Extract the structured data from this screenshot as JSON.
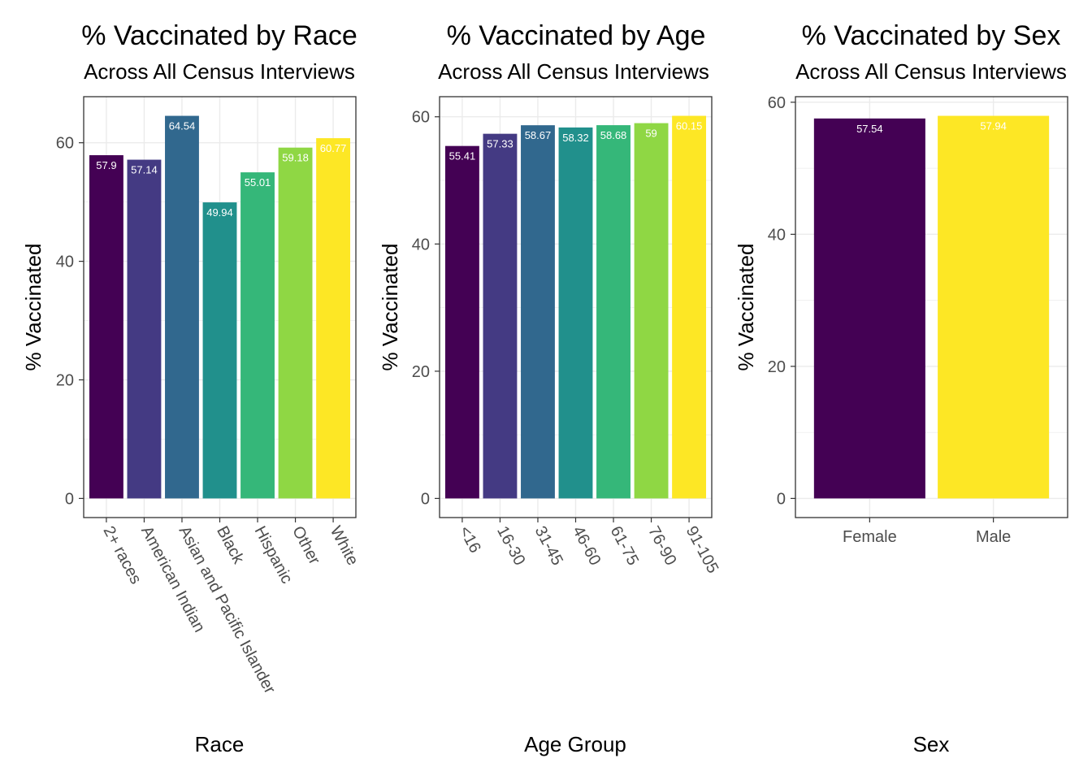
{
  "chart_data": [
    {
      "type": "bar",
      "title": "% Vaccinated by Race",
      "subtitle": "Across All Census Interviews",
      "xlabel": "Race",
      "ylabel": "% Vaccinated",
      "categories": [
        "2+ races",
        "American Indian",
        "Asian and Pacific Islander",
        "Black",
        "Hispanic",
        "Other",
        "White"
      ],
      "values": [
        57.9,
        57.14,
        64.54,
        49.94,
        55.01,
        59.18,
        60.77
      ],
      "data_labels": [
        "57.9",
        "57.14",
        "64.54",
        "49.94",
        "55.01",
        "59.18",
        "60.77"
      ],
      "colors": [
        "#440154",
        "#443A83",
        "#31688E",
        "#21908C",
        "#35B779",
        "#8FD744",
        "#FDE725"
      ],
      "yticks": [
        0,
        20,
        40,
        60
      ],
      "ylim": [
        -3.23,
        67.77
      ],
      "xtick_rotation": "rotated",
      "grid": true
    },
    {
      "type": "bar",
      "title": "% Vaccinated by Age",
      "subtitle": "Across All Census Interviews",
      "xlabel": "Age Group",
      "ylabel": "% Vaccinated",
      "categories": [
        "<16",
        "16-30",
        "31-45",
        "46-60",
        "61-75",
        "76-90",
        "91-105"
      ],
      "values": [
        55.41,
        57.33,
        58.67,
        58.32,
        58.68,
        59,
        60.15
      ],
      "data_labels": [
        "55.41",
        "57.33",
        "58.67",
        "58.32",
        "58.68",
        "59",
        "60.15"
      ],
      "colors": [
        "#440154",
        "#443A83",
        "#31688E",
        "#21908C",
        "#35B779",
        "#8FD744",
        "#FDE725"
      ],
      "yticks": [
        0,
        20,
        40,
        60
      ],
      "ylim": [
        -3.01,
        63.16
      ],
      "xtick_rotation": "rotated",
      "grid": true
    },
    {
      "type": "bar",
      "title": "% Vaccinated by Sex",
      "subtitle": "Across All Census Interviews",
      "xlabel": "Sex",
      "ylabel": "% Vaccinated",
      "categories": [
        "Female",
        "Male"
      ],
      "values": [
        57.54,
        57.94
      ],
      "data_labels": [
        "57.54",
        "57.94"
      ],
      "colors": [
        "#440154",
        "#FDE725"
      ],
      "yticks": [
        0,
        20,
        40,
        60
      ],
      "ylim": [
        -2.9,
        60.84
      ],
      "xtick_rotation": "horizontal",
      "grid": true
    }
  ]
}
